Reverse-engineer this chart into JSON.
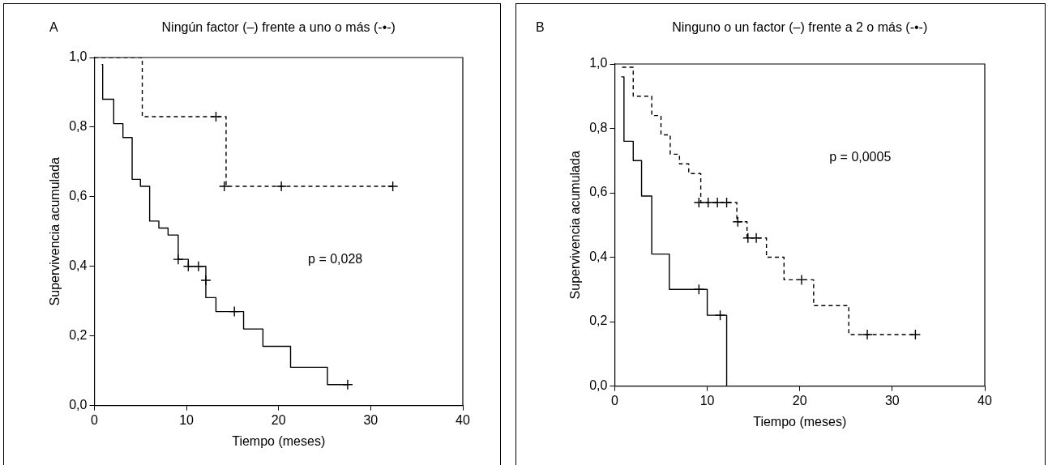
{
  "chart_data": [
    {
      "type": "step",
      "title": "Ningún factor (–) frente a uno o más (-•-)",
      "xlabel": "Tiempo (meses)",
      "ylabel": "Supervivencia acumulada",
      "annotations": [
        "A",
        "p = 0,028"
      ],
      "xlim": [
        0,
        40
      ],
      "xticks": [
        0,
        10,
        20,
        30,
        40
      ],
      "ylim": [
        0,
        1
      ],
      "yticks": [
        {
          "value": 0,
          "label": "0,0"
        },
        {
          "value": 0.2,
          "label": "0,2"
        },
        {
          "value": 0.4,
          "label": "0,4"
        },
        {
          "value": 0.6,
          "label": "0,6"
        },
        {
          "value": 0.8,
          "label": "0,8"
        },
        {
          "value": 1,
          "label": "1,0"
        }
      ],
      "legend": false,
      "series": [
        {
          "color": "#000000",
          "line_style": "solid",
          "marker": "none",
          "x": [
            0.8,
            0.9,
            2.1,
            3.1,
            4.1,
            5.0,
            6.0,
            7.0,
            8.0,
            9.1,
            10.2,
            12.1,
            12.1,
            13.2,
            16.2,
            18.3,
            21.3,
            25.3,
            27.5
          ],
          "values": [
            0.98,
            0.88,
            0.81,
            0.77,
            0.65,
            0.63,
            0.53,
            0.51,
            0.49,
            0.42,
            0.4,
            0.36,
            0.31,
            0.27,
            0.22,
            0.17,
            0.11,
            0.06,
            0.06
          ]
        },
        {
          "type": "scatter",
          "color": "#000000",
          "marker": "cross",
          "x": [
            9.1,
            10.2,
            11.3,
            12.1,
            15.2,
            27.5
          ],
          "values": [
            0.42,
            0.4,
            0.4,
            0.36,
            0.27,
            0.06
          ]
        },
        {
          "color": "#000000",
          "line_style": "dashed",
          "marker": "none",
          "x": [
            0,
            5.2,
            14.3,
            32.4
          ],
          "values": [
            1.0,
            0.83,
            0.63,
            0.63
          ]
        },
        {
          "type": "scatter",
          "color": "#000000",
          "marker": "cross",
          "x": [
            13.2,
            14.1,
            20.3,
            32.4
          ],
          "values": [
            0.83,
            0.63,
            0.63,
            0.63
          ]
        }
      ]
    },
    {
      "type": "step",
      "title": "Ninguno o un factor (–) frente a 2 o más (-•-)",
      "xlabel": "Tiempo (meses)",
      "ylabel": "Supervivencia acumulada",
      "annotations": [
        "B",
        "p = 0,0005"
      ],
      "xlim": [
        0,
        40
      ],
      "xticks": [
        0,
        10,
        20,
        30,
        40
      ],
      "ylim": [
        0,
        1
      ],
      "yticks": [
        {
          "value": 0,
          "label": "0,0"
        },
        {
          "value": 0.2,
          "label": "0,2"
        },
        {
          "value": 0.4,
          "label": "0,4"
        },
        {
          "value": 0.6,
          "label": "0,6"
        },
        {
          "value": 0.8,
          "label": "0,8"
        },
        {
          "value": 1,
          "label": "1,0"
        }
      ],
      "legend": false,
      "series": [
        {
          "color": "#000000",
          "line_style": "solid",
          "marker": "none",
          "x": [
            0.7,
            1.0,
            2.0,
            2.9,
            4.0,
            5.9,
            10.0,
            12.1
          ],
          "values": [
            0.96,
            0.76,
            0.7,
            0.59,
            0.41,
            0.3,
            0.22,
            0
          ]
        },
        {
          "type": "scatter",
          "color": "#000000",
          "marker": "cross",
          "x": [
            9.1,
            11.4
          ],
          "values": [
            0.3,
            0.22
          ]
        },
        {
          "color": "#000000",
          "line_style": "dashed",
          "marker": "none",
          "x": [
            0.8,
            2.0,
            4.0,
            5.0,
            6.0,
            7.0,
            8.0,
            9.3,
            13.2,
            14.3,
            16.4,
            18.3,
            21.5,
            25.3,
            32.5
          ],
          "values": [
            0.99,
            0.9,
            0.84,
            0.78,
            0.72,
            0.69,
            0.66,
            0.57,
            0.51,
            0.46,
            0.4,
            0.33,
            0.25,
            0.16,
            0.16
          ]
        },
        {
          "type": "scatter",
          "color": "#000000",
          "marker": "cross",
          "x": [
            9.1,
            10.1,
            11.1,
            12.1,
            13.3,
            14.4,
            15.3,
            20.2,
            27.3,
            32.5
          ],
          "values": [
            0.57,
            0.57,
            0.57,
            0.57,
            0.51,
            0.46,
            0.46,
            0.33,
            0.16,
            0.16
          ]
        }
      ]
    }
  ]
}
